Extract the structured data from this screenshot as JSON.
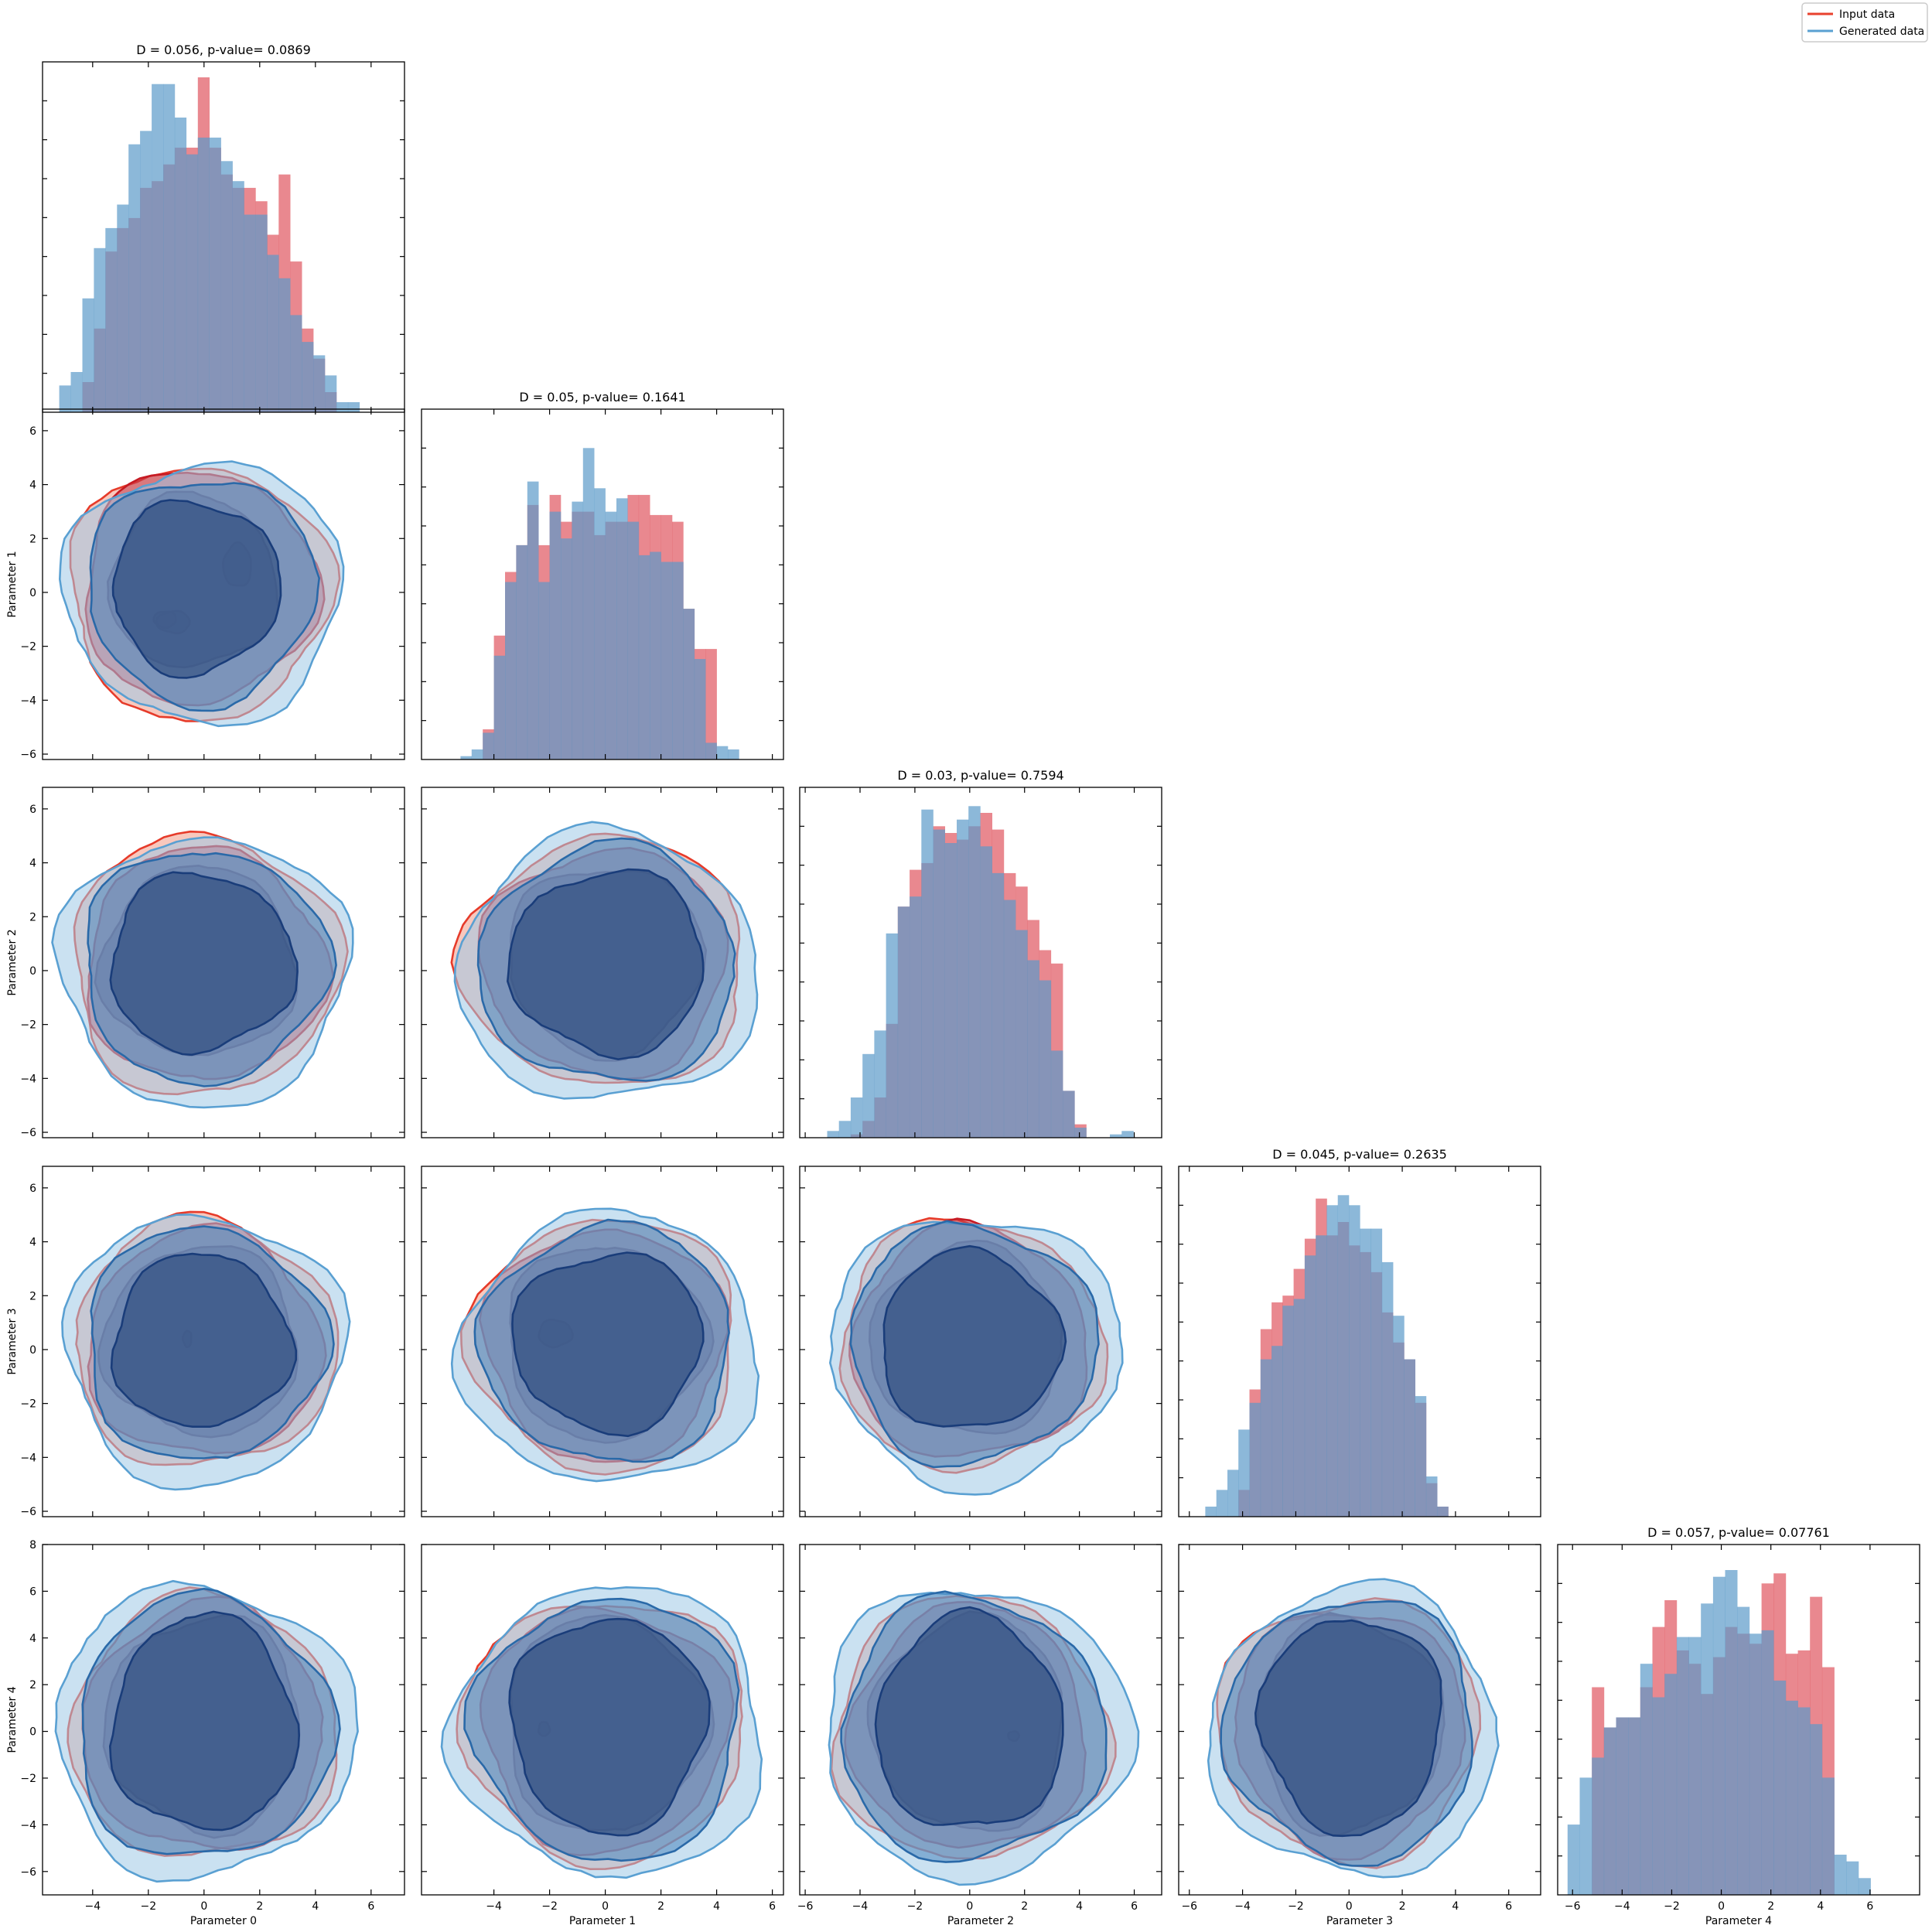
{
  "legend": {
    "placement": "top-right",
    "items": [
      {
        "label": "Input data",
        "color": "#e8412d"
      },
      {
        "label": "Generated data",
        "color": "#5aa0d2"
      }
    ]
  },
  "colors": {
    "input_hist": "#e0565f",
    "generated_hist": "#5b9ac9",
    "input_fill_outer": "#f39a86",
    "input_fill_mid": "#c0384a",
    "input_fill_inner": "#6d0f2a",
    "generated_fill_outer": "#9ec9e6",
    "generated_fill_mid": "#4a86bd",
    "generated_fill_inner": "#203f73",
    "input_line": "#e63b2a",
    "input_line_mid": "#c61a23",
    "input_line_inner": "#7a0f25",
    "generated_line": "#5aa0d2",
    "generated_line_mid": "#2a69a8",
    "generated_line_inner": "#1a3d7a"
  },
  "chart_data": {
    "type": "corner",
    "parameters": [
      "Parameter 0",
      "Parameter 1",
      "Parameter 2",
      "Parameter 3",
      "Parameter 4"
    ],
    "xlims": [
      [
        -5.8,
        7.2
      ],
      [
        -6.6,
        6.4
      ],
      [
        -6.2,
        7.0
      ],
      [
        -6.4,
        7.2
      ],
      [
        -6.6,
        8.0
      ]
    ],
    "ylims": [
      [
        -6.2,
        6.8
      ],
      [
        -6.2,
        6.8
      ],
      [
        -6.2,
        6.8
      ],
      [
        -6.2,
        6.8
      ],
      [
        -7.0,
        8.0
      ]
    ],
    "x_ticks": [
      [
        -4,
        -2,
        0,
        2,
        4,
        6
      ],
      [
        -4,
        -2,
        0,
        2,
        4,
        6
      ],
      [
        -6,
        -4,
        -2,
        0,
        2,
        4,
        6
      ],
      [
        -6,
        -4,
        -2,
        0,
        2,
        4,
        6
      ],
      [
        -6,
        -4,
        -2,
        0,
        2,
        4,
        6
      ]
    ],
    "y_ticks": [
      [
        -6,
        -4,
        -2,
        0,
        2,
        4,
        6
      ],
      [
        -6,
        -4,
        -2,
        0,
        2,
        4,
        6
      ],
      [
        -6,
        -4,
        -2,
        0,
        2,
        4,
        6
      ],
      [
        -6,
        -4,
        -2,
        0,
        2,
        4,
        6
      ],
      [
        -6,
        -4,
        -2,
        0,
        2,
        4,
        6,
        8
      ]
    ],
    "x_tick_labels": [
      [
        "−4",
        "−2",
        "0",
        "2",
        "4",
        "6"
      ],
      [
        "−4",
        "−2",
        "0",
        "2",
        "4",
        "6"
      ],
      [
        "−6",
        "−4",
        "−2",
        "0",
        "2",
        "4",
        "6"
      ],
      [
        "−6",
        "−4",
        "−2",
        "0",
        "2",
        "4",
        "6"
      ],
      [
        "−6",
        "−4",
        "−2",
        "0",
        "2",
        "4",
        "6"
      ]
    ],
    "y_tick_labels": [
      [
        "−6",
        "−4",
        "−2",
        "0",
        "2",
        "4",
        "6"
      ],
      [
        "−6",
        "−4",
        "−2",
        "0",
        "2",
        "4",
        "6"
      ],
      [
        "−6",
        "−4",
        "−2",
        "0",
        "2",
        "4",
        "6"
      ],
      [
        "−6",
        "−4",
        "−2",
        "0",
        "2",
        "4",
        "6"
      ],
      [
        "−6",
        "−4",
        "−2",
        "0",
        "2",
        "4",
        "6",
        "8"
      ]
    ],
    "diagonal": [
      {
        "title": "D = 0.056, p-value= 0.0869",
        "edges": [
          -5.2,
          6.0
        ],
        "input": [
          0,
          0,
          0.09,
          0.25,
          0.48,
          0.55,
          0.58,
          0.67,
          0.69,
          0.74,
          0.79,
          0.79,
          1.0,
          0.79,
          0.71,
          0.67,
          0.67,
          0.63,
          0.53,
          0.71,
          0.45,
          0.25,
          0.16,
          0.06,
          0,
          0,
          0
        ],
        "generated": [
          0.08,
          0.12,
          0.34,
          0.49,
          0.55,
          0.62,
          0.8,
          0.84,
          0.98,
          0.98,
          0.88,
          0.77,
          0.82,
          0.82,
          0.75,
          0.69,
          0.59,
          0.59,
          0.47,
          0.4,
          0.29,
          0.21,
          0.17,
          0.11,
          0.03,
          0.03,
          0.0
        ]
      },
      {
        "title": "D = 0.05, p-value= 0.1641",
        "edges": [
          -5.2,
          5.6
        ],
        "input": [
          0,
          0,
          0.09,
          0.37,
          0.56,
          0.64,
          0.76,
          0.64,
          0.79,
          0.71,
          0.74,
          0.74,
          0.67,
          0.71,
          0.71,
          0.79,
          0.79,
          0.73,
          0.73,
          0.71,
          0.45,
          0.33,
          0.33,
          0,
          0,
          0,
          0
        ],
        "generated": [
          0.01,
          0.03,
          0.08,
          0.31,
          0.53,
          0.64,
          0.83,
          0.53,
          0.74,
          0.66,
          0.77,
          0.93,
          0.81,
          0.74,
          0.78,
          0.71,
          0.61,
          0.62,
          0.59,
          0.59,
          0.45,
          0.3,
          0.05,
          0.04,
          0.03,
          0,
          0
        ]
      },
      {
        "title": "D = 0.03, p-value= 0.7594",
        "edges": [
          -5.2,
          6.4
        ],
        "input": [
          0,
          0,
          0.01,
          0.05,
          0.12,
          0.34,
          0.69,
          0.8,
          0.82,
          0.93,
          0.91,
          0.89,
          0.93,
          0.97,
          0.92,
          0.79,
          0.75,
          0.65,
          0.56,
          0.52,
          0.14,
          0.04,
          0,
          0,
          0,
          0,
          0
        ],
        "generated": [
          0.02,
          0.05,
          0.12,
          0.25,
          0.32,
          0.61,
          0.69,
          0.72,
          0.98,
          0.92,
          0.88,
          0.95,
          0.99,
          0.87,
          0.79,
          0.71,
          0.62,
          0.53,
          0.47,
          0.26,
          0.14,
          0.03,
          0,
          0,
          0.01,
          0.02,
          0
        ]
      },
      {
        "title": "D = 0.045, p-value= 0.2635",
        "edges": [
          -5.4,
          5.8
        ],
        "input": [
          0,
          0,
          0,
          0.08,
          0.38,
          0.56,
          0.64,
          0.66,
          0.74,
          0.83,
          0.95,
          0.84,
          0.88,
          0.81,
          0.79,
          0.73,
          0.61,
          0.52,
          0.47,
          0.34,
          0.1,
          0.03,
          0,
          0,
          0,
          0,
          0
        ],
        "generated": [
          0.03,
          0.08,
          0.14,
          0.26,
          0.34,
          0.47,
          0.51,
          0.63,
          0.65,
          0.78,
          0.84,
          0.93,
          0.96,
          0.93,
          0.86,
          0.86,
          0.76,
          0.6,
          0.47,
          0.36,
          0.12,
          0.03,
          0,
          0,
          0,
          0,
          0
        ]
      },
      {
        "title": "D = 0.057, p-value= 0.07761",
        "edges": [
          -6.2,
          7.0
        ],
        "input": [
          0,
          0,
          0.62,
          0.5,
          0.53,
          0.53,
          0.62,
          0.8,
          0.88,
          0.73,
          0.69,
          0.6,
          0.71,
          0.8,
          0.78,
          0.75,
          0.93,
          0.96,
          0.72,
          0.73,
          0.89,
          0.68,
          0,
          0,
          0,
          0,
          0
        ],
        "generated": [
          0.21,
          0.35,
          0.41,
          0.5,
          0.53,
          0.53,
          0.69,
          0.59,
          0.66,
          0.77,
          0.77,
          0.87,
          0.95,
          0.97,
          0.86,
          0.78,
          0.79,
          0.64,
          0.58,
          0.56,
          0.51,
          0.35,
          0.12,
          0.1,
          0.05,
          0,
          0
        ]
      }
    ],
    "contours": {
      "1-0": {
        "input": [
          {
            "cx": -0.2,
            "cy": 0.0,
            "rx": 4.7,
            "ry": 4.7
          },
          {
            "cx": -0.2,
            "cy": 0.2,
            "rx": 4.2,
            "ry": 4.3
          },
          {
            "cx": -0.4,
            "cy": 0.4,
            "rx": 3.0,
            "ry": 3.2
          },
          {
            "cx": 1.2,
            "cy": 1.0,
            "rx": 0.5,
            "ry": 0.8
          },
          {
            "cx": -1.1,
            "cy": -1.1,
            "rx": 0.6,
            "ry": 0.4
          },
          {
            "cx": -1.4,
            "cy": -1.0,
            "rx": 0.4,
            "ry": 0.3
          }
        ],
        "generated": [
          {
            "cx": 0.0,
            "cy": 0.0,
            "rx": 5.0,
            "ry": 4.8
          },
          {
            "cx": -0.1,
            "cy": 0.1,
            "rx": 4.1,
            "ry": 4.2
          },
          {
            "cx": -0.3,
            "cy": 0.2,
            "rx": 3.0,
            "ry": 3.2
          }
        ]
      },
      "2-0": {
        "input": [
          {
            "cx": 0.0,
            "cy": 0.2,
            "rx": 4.8,
            "ry": 4.8
          },
          {
            "cx": 0.0,
            "cy": 0.2,
            "rx": 4.3,
            "ry": 4.3
          },
          {
            "cx": -0.2,
            "cy": 0.3,
            "rx": 3.5,
            "ry": 3.5
          }
        ],
        "generated": [
          {
            "cx": 0.0,
            "cy": 0.0,
            "rx": 5.2,
            "ry": 5.0
          },
          {
            "cx": 0.0,
            "cy": 0.2,
            "rx": 4.4,
            "ry": 4.3
          },
          {
            "cx": -0.1,
            "cy": 0.3,
            "rx": 3.3,
            "ry": 3.3
          }
        ]
      },
      "2-1": {
        "input": [
          {
            "cx": 0.0,
            "cy": 0.3,
            "rx": 5.1,
            "ry": 4.6
          },
          {
            "cx": 0.0,
            "cy": 0.3,
            "rx": 4.4,
            "ry": 4.2
          },
          {
            "cx": 0.0,
            "cy": 0.4,
            "rx": 3.5,
            "ry": 3.5
          }
        ],
        "generated": [
          {
            "cx": 0.1,
            "cy": 0.1,
            "rx": 5.4,
            "ry": 5.0
          },
          {
            "cx": 0.1,
            "cy": 0.2,
            "rx": 4.6,
            "ry": 4.4
          },
          {
            "cx": 0.1,
            "cy": 0.3,
            "rx": 3.5,
            "ry": 3.4
          }
        ]
      },
      "3-0": {
        "input": [
          {
            "cx": 0.0,
            "cy": 0.2,
            "rx": 4.7,
            "ry": 4.6
          },
          {
            "cx": 0.0,
            "cy": 0.2,
            "rx": 4.2,
            "ry": 4.2
          },
          {
            "cx": -0.1,
            "cy": 0.3,
            "rx": 3.5,
            "ry": 3.5
          },
          {
            "cx": -0.6,
            "cy": 0.4,
            "rx": 0.15,
            "ry": 0.3
          }
        ],
        "generated": [
          {
            "cx": 0.0,
            "cy": 0.0,
            "rx": 5.0,
            "ry": 5.0
          },
          {
            "cx": 0.0,
            "cy": 0.2,
            "rx": 4.3,
            "ry": 4.3
          },
          {
            "cx": -0.1,
            "cy": 0.3,
            "rx": 3.2,
            "ry": 3.2
          }
        ]
      },
      "3-1": {
        "input": [
          {
            "cx": 0.0,
            "cy": 0.2,
            "rx": 4.8,
            "ry": 4.7
          },
          {
            "cx": 0.0,
            "cy": 0.2,
            "rx": 4.3,
            "ry": 4.3
          },
          {
            "cx": 0.0,
            "cy": 0.3,
            "rx": 3.6,
            "ry": 3.6
          },
          {
            "cx": -1.8,
            "cy": 0.6,
            "rx": 0.6,
            "ry": 0.5
          }
        ],
        "generated": [
          {
            "cx": 0.2,
            "cy": 0.0,
            "rx": 5.4,
            "ry": 5.0
          },
          {
            "cx": 0.1,
            "cy": 0.2,
            "rx": 4.5,
            "ry": 4.4
          },
          {
            "cx": 0.1,
            "cy": 0.3,
            "rx": 3.4,
            "ry": 3.3
          }
        ]
      },
      "3-2": {
        "input": [
          {
            "cx": 0.0,
            "cy": 0.2,
            "rx": 4.8,
            "ry": 4.6
          },
          {
            "cx": 0.0,
            "cy": 0.2,
            "rx": 4.3,
            "ry": 4.3
          },
          {
            "cx": -0.1,
            "cy": 0.3,
            "rx": 3.5,
            "ry": 3.5
          }
        ],
        "generated": [
          {
            "cx": 0.2,
            "cy": 0.0,
            "rx": 5.3,
            "ry": 5.0
          },
          {
            "cx": 0.1,
            "cy": 0.2,
            "rx": 4.5,
            "ry": 4.4
          },
          {
            "cx": 0.0,
            "cy": 0.3,
            "rx": 3.3,
            "ry": 3.3
          }
        ]
      },
      "4-0": {
        "input": [
          {
            "cx": 0.0,
            "cy": 0.1,
            "rx": 4.8,
            "ry": 5.6
          },
          {
            "cx": 0.0,
            "cy": 0.1,
            "rx": 4.3,
            "ry": 5.3
          },
          {
            "cx": 0.0,
            "cy": 0.3,
            "rx": 3.5,
            "ry": 4.6
          }
        ],
        "generated": [
          {
            "cx": 0.0,
            "cy": 0.0,
            "rx": 5.4,
            "ry": 6.2
          },
          {
            "cx": 0.0,
            "cy": 0.1,
            "rx": 4.6,
            "ry": 5.6
          },
          {
            "cx": 0.0,
            "cy": 0.3,
            "rx": 3.3,
            "ry": 4.6
          }
        ]
      },
      "4-1": {
        "input": [
          {
            "cx": 0.0,
            "cy": 0.1,
            "rx": 5.1,
            "ry": 5.6
          },
          {
            "cx": 0.0,
            "cy": 0.1,
            "rx": 4.4,
            "ry": 5.2
          },
          {
            "cx": 0.0,
            "cy": 0.3,
            "rx": 3.6,
            "ry": 4.6
          },
          {
            "cx": -2.2,
            "cy": 0.1,
            "rx": 0.2,
            "ry": 0.3
          }
        ],
        "generated": [
          {
            "cx": 0.2,
            "cy": 0.0,
            "rx": 5.6,
            "ry": 6.2
          },
          {
            "cx": 0.1,
            "cy": 0.1,
            "rx": 4.8,
            "ry": 5.6
          },
          {
            "cx": 0.1,
            "cy": 0.3,
            "rx": 3.5,
            "ry": 4.6
          }
        ]
      },
      "4-2": {
        "input": [
          {
            "cx": 0.0,
            "cy": 0.1,
            "rx": 5.0,
            "ry": 5.6
          },
          {
            "cx": 0.0,
            "cy": 0.1,
            "rx": 4.3,
            "ry": 5.2
          },
          {
            "cx": 0.0,
            "cy": 0.3,
            "rx": 3.5,
            "ry": 4.6
          },
          {
            "cx": 1.6,
            "cy": -0.2,
            "rx": 0.2,
            "ry": 0.2
          }
        ],
        "generated": [
          {
            "cx": 0.2,
            "cy": 0.0,
            "rx": 5.6,
            "ry": 6.2
          },
          {
            "cx": 0.1,
            "cy": 0.1,
            "rx": 4.8,
            "ry": 5.6
          },
          {
            "cx": 0.0,
            "cy": 0.3,
            "rx": 3.4,
            "ry": 4.6
          }
        ]
      },
      "4-3": {
        "input": [
          {
            "cx": 0.0,
            "cy": 0.1,
            "rx": 4.9,
            "ry": 5.6
          },
          {
            "cx": 0.0,
            "cy": 0.1,
            "rx": 4.3,
            "ry": 5.2
          },
          {
            "cx": 0.0,
            "cy": 0.3,
            "rx": 3.5,
            "ry": 4.6
          }
        ],
        "generated": [
          {
            "cx": 0.2,
            "cy": 0.0,
            "rx": 5.4,
            "ry": 6.2
          },
          {
            "cx": 0.1,
            "cy": 0.1,
            "rx": 4.7,
            "ry": 5.6
          },
          {
            "cx": 0.1,
            "cy": 0.3,
            "rx": 3.4,
            "ry": 4.6
          }
        ]
      }
    }
  }
}
